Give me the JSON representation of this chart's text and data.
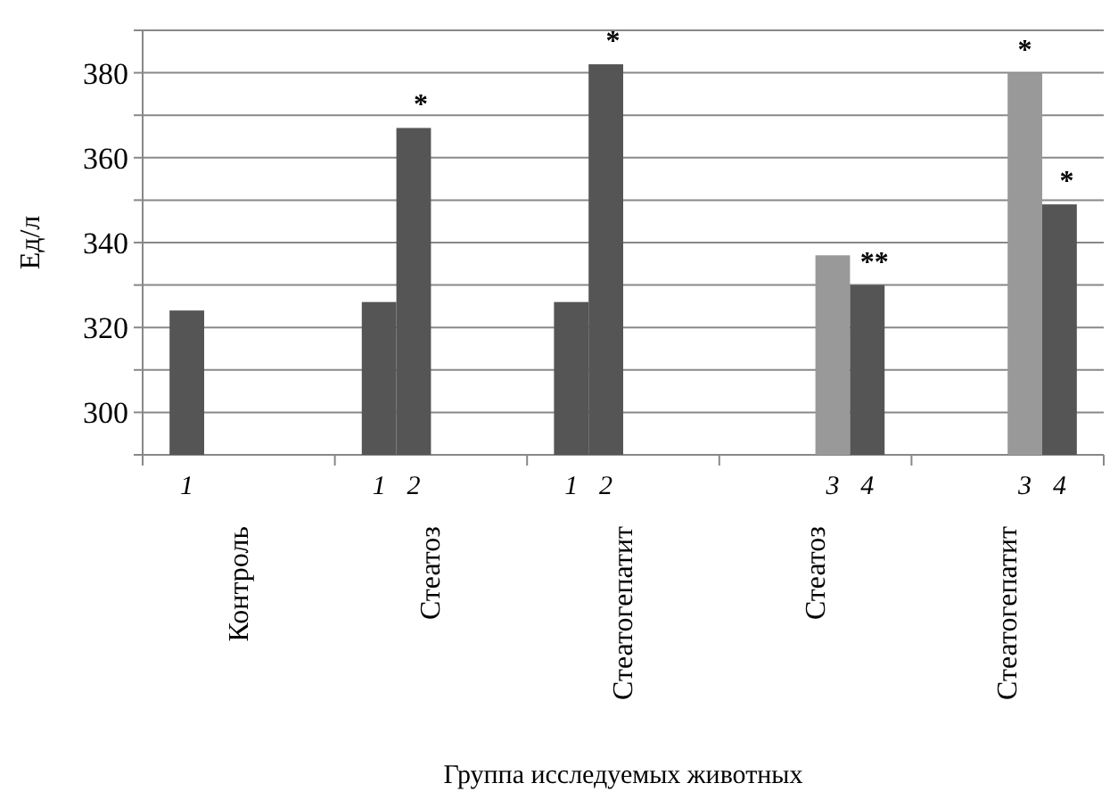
{
  "chart_data": {
    "type": "bar",
    "xlabel": "Группа исследуемых животных",
    "ylabel": "Ед/л",
    "categories": [
      "Контроль",
      "Стеатоз",
      "Стеатогепатит",
      "Стеатоз",
      "Стеатогепатит"
    ],
    "series": [
      {
        "name": "1",
        "color": "#555555",
        "values": [
          324,
          326,
          326,
          null,
          null
        ],
        "value_labels": [
          null,
          null,
          null,
          null,
          null
        ]
      },
      {
        "name": "2",
        "color": "#555555",
        "values": [
          null,
          367,
          382,
          null,
          null
        ],
        "value_labels": [
          null,
          "*",
          "*",
          null,
          null
        ]
      },
      {
        "name": "3",
        "color": "#999999",
        "values": [
          null,
          null,
          null,
          337,
          380
        ],
        "value_labels": [
          null,
          null,
          null,
          null,
          "*"
        ]
      },
      {
        "name": "4",
        "color": "#555555",
        "values": [
          null,
          null,
          null,
          330,
          349
        ],
        "value_labels": [
          null,
          null,
          null,
          "**",
          "*"
        ]
      }
    ],
    "ylim": [
      290,
      390
    ],
    "yticks": [
      {
        "value": 290,
        "label": null
      },
      300,
      {
        "value": 310,
        "label": null
      },
      320,
      {
        "value": 330,
        "label": null
      },
      340,
      {
        "value": 350,
        "label": null
      },
      360,
      {
        "value": 370,
        "label": null
      },
      380,
      {
        "value": 390,
        "label": null
      }
    ],
    "grid": "y"
  }
}
